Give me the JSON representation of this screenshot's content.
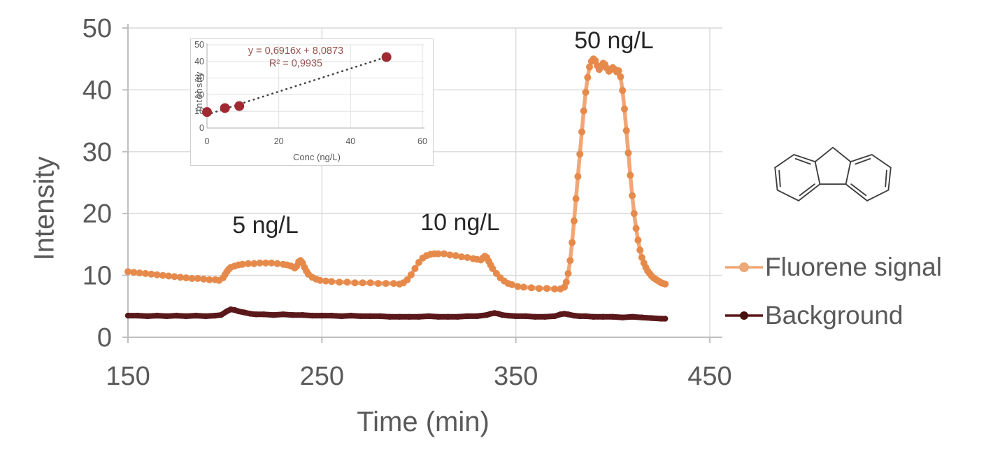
{
  "chart_data": {
    "main": {
      "type": "line",
      "title": "",
      "xlabel": "Time (min)",
      "ylabel": "Intensity",
      "xlim": [
        150,
        457
      ],
      "ylim": [
        0,
        50
      ],
      "xticks": [
        150,
        250,
        350,
        450
      ],
      "yticks": [
        0,
        10,
        20,
        30,
        40,
        50
      ],
      "grid": true,
      "annotations": [
        {
          "text": "5 ng/L",
          "x": 221,
          "y": 17.5
        },
        {
          "text": "10 ng/L",
          "x": 321,
          "y": 18.0
        },
        {
          "text": "50 ng/L",
          "x": 400,
          "y": 47.5
        }
      ],
      "series": [
        {
          "name": "Fluorene signal",
          "color": "#f2a676",
          "marker_color": "#e68a4c",
          "line_width": 5.5,
          "marker_radius": 5,
          "points": [
            [
              150,
              10.6
            ],
            [
              153,
              10.5
            ],
            [
              156,
              10.4
            ],
            [
              159,
              10.3
            ],
            [
              162,
              10.2
            ],
            [
              165,
              10.1
            ],
            [
              168,
              10.0
            ],
            [
              171,
              9.9
            ],
            [
              174,
              9.8
            ],
            [
              177,
              9.7
            ],
            [
              180,
              9.6
            ],
            [
              183,
              9.5
            ],
            [
              186,
              9.5
            ],
            [
              189,
              9.4
            ],
            [
              192,
              9.3
            ],
            [
              195,
              9.3
            ],
            [
              197,
              9.2
            ],
            [
              199,
              9.6
            ],
            [
              200,
              10.1
            ],
            [
              201,
              10.6
            ],
            [
              202,
              11.0
            ],
            [
              203,
              11.3
            ],
            [
              205,
              11.5
            ],
            [
              207,
              11.7
            ],
            [
              209,
              11.8
            ],
            [
              212,
              11.9
            ],
            [
              215,
              11.9
            ],
            [
              218,
              12.0
            ],
            [
              221,
              12.0
            ],
            [
              224,
              12.0
            ],
            [
              227,
              11.9
            ],
            [
              230,
              11.8
            ],
            [
              232,
              11.7
            ],
            [
              234,
              11.5
            ],
            [
              236,
              11.2
            ],
            [
              237,
              11.5
            ],
            [
              238,
              12.2
            ],
            [
              239,
              12.4
            ],
            [
              240,
              12.0
            ],
            [
              241,
              11.3
            ],
            [
              242,
              10.7
            ],
            [
              243,
              10.2
            ],
            [
              245,
              9.7
            ],
            [
              247,
              9.4
            ],
            [
              249,
              9.2
            ],
            [
              252,
              9.1
            ],
            [
              255,
              9.0
            ],
            [
              259,
              8.9
            ],
            [
              263,
              8.9
            ],
            [
              267,
              8.8
            ],
            [
              271,
              8.8
            ],
            [
              275,
              8.8
            ],
            [
              279,
              8.7
            ],
            [
              283,
              8.7
            ],
            [
              287,
              8.7
            ],
            [
              290,
              8.6
            ],
            [
              292,
              8.8
            ],
            [
              294,
              9.3
            ],
            [
              296,
              10.1
            ],
            [
              298,
              11.1
            ],
            [
              300,
              12.1
            ],
            [
              302,
              12.8
            ],
            [
              304,
              13.2
            ],
            [
              306,
              13.4
            ],
            [
              308,
              13.5
            ],
            [
              310,
              13.5
            ],
            [
              313,
              13.5
            ],
            [
              316,
              13.3
            ],
            [
              319,
              13.2
            ],
            [
              322,
              13.0
            ],
            [
              325,
              12.9
            ],
            [
              328,
              12.7
            ],
            [
              330,
              12.6
            ],
            [
              332,
              12.5
            ],
            [
              333,
              12.8
            ],
            [
              334,
              13.1
            ],
            [
              335,
              12.9
            ],
            [
              336,
              12.3
            ],
            [
              337,
              11.7
            ],
            [
              338,
              11.1
            ],
            [
              340,
              10.3
            ],
            [
              342,
              9.6
            ],
            [
              344,
              9.1
            ],
            [
              346,
              8.7
            ],
            [
              348,
              8.5
            ],
            [
              351,
              8.2
            ],
            [
              354,
              8.1
            ],
            [
              358,
              8.0
            ],
            [
              362,
              7.9
            ],
            [
              366,
              7.9
            ],
            [
              370,
              7.8
            ],
            [
              373,
              7.8
            ],
            [
              375,
              8.1
            ],
            [
              376,
              8.9
            ],
            [
              377,
              10.3
            ],
            [
              378,
              12.4
            ],
            [
              379,
              15.3
            ],
            [
              380,
              18.8
            ],
            [
              381,
              22.4
            ],
            [
              382,
              26.0
            ],
            [
              383,
              29.6
            ],
            [
              384,
              33.2
            ],
            [
              385,
              36.6
            ],
            [
              386,
              39.6
            ],
            [
              387,
              42.0
            ],
            [
              388,
              43.7
            ],
            [
              389,
              44.6
            ],
            [
              390,
              45.0
            ],
            [
              391,
              44.7
            ],
            [
              392,
              43.9
            ],
            [
              393,
              43.3
            ],
            [
              394,
              43.7
            ],
            [
              395,
              44.3
            ],
            [
              396,
              44.1
            ],
            [
              397,
              43.5
            ],
            [
              398,
              43.0
            ],
            [
              399,
              43.3
            ],
            [
              400,
              43.6
            ],
            [
              401,
              43.3
            ],
            [
              402,
              42.9
            ],
            [
              403,
              43.1
            ],
            [
              404,
              42.1
            ],
            [
              405,
              39.9
            ],
            [
              406,
              36.9
            ],
            [
              407,
              33.4
            ],
            [
              408,
              29.8
            ],
            [
              409,
              26.2
            ],
            [
              410,
              22.9
            ],
            [
              411,
              20.0
            ],
            [
              412,
              17.6
            ],
            [
              413,
              15.7
            ],
            [
              414,
              14.1
            ],
            [
              415,
              12.9
            ],
            [
              416,
              12.0
            ],
            [
              417,
              11.3
            ],
            [
              418,
              10.7
            ],
            [
              419,
              10.3
            ],
            [
              420,
              9.9
            ],
            [
              421,
              9.6
            ],
            [
              422,
              9.4
            ],
            [
              423,
              9.2
            ],
            [
              424,
              9.0
            ],
            [
              425,
              8.8
            ],
            [
              426,
              8.7
            ],
            [
              427,
              8.6
            ]
          ]
        },
        {
          "name": "Background",
          "color": "#5a181a",
          "marker_color": "#5a181a",
          "line_width": 8,
          "marker_radius": 4.2,
          "points": [
            [
              150,
              3.5
            ],
            [
              155,
              3.5
            ],
            [
              160,
              3.4
            ],
            [
              165,
              3.5
            ],
            [
              170,
              3.4
            ],
            [
              175,
              3.5
            ],
            [
              180,
              3.4
            ],
            [
              185,
              3.5
            ],
            [
              190,
              3.4
            ],
            [
              195,
              3.5
            ],
            [
              198,
              3.6
            ],
            [
              201,
              4.2
            ],
            [
              203,
              4.5
            ],
            [
              205,
              4.4
            ],
            [
              207,
              4.2
            ],
            [
              210,
              4.0
            ],
            [
              213,
              3.8
            ],
            [
              216,
              3.7
            ],
            [
              220,
              3.7
            ],
            [
              225,
              3.6
            ],
            [
              230,
              3.7
            ],
            [
              235,
              3.6
            ],
            [
              240,
              3.6
            ],
            [
              245,
              3.5
            ],
            [
              250,
              3.5
            ],
            [
              255,
              3.5
            ],
            [
              260,
              3.4
            ],
            [
              265,
              3.5
            ],
            [
              270,
              3.4
            ],
            [
              275,
              3.4
            ],
            [
              280,
              3.4
            ],
            [
              285,
              3.3
            ],
            [
              290,
              3.3
            ],
            [
              295,
              3.3
            ],
            [
              300,
              3.3
            ],
            [
              305,
              3.4
            ],
            [
              310,
              3.3
            ],
            [
              315,
              3.3
            ],
            [
              320,
              3.3
            ],
            [
              325,
              3.4
            ],
            [
              330,
              3.4
            ],
            [
              335,
              3.6
            ],
            [
              337,
              3.8
            ],
            [
              339,
              3.9
            ],
            [
              341,
              3.8
            ],
            [
              343,
              3.6
            ],
            [
              346,
              3.5
            ],
            [
              350,
              3.4
            ],
            [
              355,
              3.4
            ],
            [
              360,
              3.3
            ],
            [
              365,
              3.3
            ],
            [
              370,
              3.4
            ],
            [
              373,
              3.7
            ],
            [
              375,
              3.8
            ],
            [
              377,
              3.7
            ],
            [
              380,
              3.5
            ],
            [
              383,
              3.4
            ],
            [
              386,
              3.4
            ],
            [
              390,
              3.3
            ],
            [
              395,
              3.3
            ],
            [
              400,
              3.3
            ],
            [
              405,
              3.2
            ],
            [
              410,
              3.3
            ],
            [
              415,
              3.2
            ],
            [
              420,
              3.1
            ],
            [
              425,
              3.0
            ],
            [
              427,
              3.0
            ]
          ]
        }
      ]
    },
    "inset": {
      "type": "scatter",
      "xlabel": "Conc (ng/L)",
      "ylabel": "Intensity",
      "xlim": [
        0,
        60
      ],
      "ylim": [
        0,
        50
      ],
      "xticks": [
        0,
        20,
        40,
        60
      ],
      "yticks": [
        0,
        10,
        20,
        30,
        40,
        50
      ],
      "grid": true,
      "equation": "y = 0,6916x + 8,0873",
      "r_squared": "R² = 0,9935",
      "marker_color": "#a12932",
      "points": [
        [
          0,
          9.6
        ],
        [
          5,
          12.0
        ],
        [
          9,
          13.2
        ],
        [
          50,
          42.6
        ]
      ],
      "trendline": {
        "slope": 0.6916,
        "intercept": 8.0873,
        "x_range": [
          0,
          51
        ],
        "style": "dotted",
        "color": "#3f3f3f"
      }
    }
  },
  "legend": {
    "items": [
      {
        "label": "Fluorene signal",
        "line_color": "#f2a676",
        "marker_color": "#eda878"
      },
      {
        "label": "Background",
        "line_color": "#5a181a",
        "marker_color": "#47110f"
      }
    ]
  },
  "molecule": {
    "name": "fluorene"
  }
}
